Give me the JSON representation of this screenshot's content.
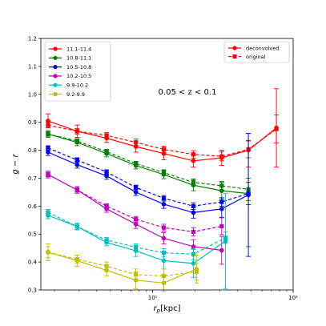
{
  "chart_data": {
    "type": "line",
    "xlabel": "r_p[kpc]",
    "ylabel": "g − r",
    "xscale": "log",
    "xlim": [
      1.6,
      100
    ],
    "ylim": [
      0.3,
      1.2
    ],
    "yticks": [
      0.3,
      0.4,
      0.5,
      0.6,
      0.7,
      0.8,
      0.9,
      1.0,
      1.1,
      1.2
    ],
    "ytick_labels": [
      "0.3",
      "0.4",
      "0.5",
      "0.6",
      "0.7",
      "0.8",
      "0.9",
      "1.0",
      "1.1",
      "1.2"
    ],
    "xticks": [
      10,
      100
    ],
    "xtick_labels": [
      "10¹",
      "10²"
    ],
    "annotation": "0.05 < z < 0.1",
    "legend_mass": {
      "placement": "top-left",
      "entries": [
        {
          "label": "11.1-11.4",
          "color": "#ff0000"
        },
        {
          "label": "10.8-11.1",
          "color": "#008000"
        },
        {
          "label": "10.5-10.8",
          "color": "#0000ff"
        },
        {
          "label": "10.2-10.5",
          "color": "#bf00bf"
        },
        {
          "label": "9.9-10.2",
          "color": "#00bfbf"
        },
        {
          "label": "9.2-9.9",
          "color": "#bfbf00"
        }
      ]
    },
    "legend_style": {
      "placement": "top-right",
      "entries": [
        {
          "label": "deconvolved",
          "style": "solid",
          "marker": "circle"
        },
        {
          "label": "original",
          "style": "dashed",
          "marker": "square"
        }
      ]
    },
    "series": [
      {
        "name": "11.1-11.4",
        "color": "#ff0000",
        "deconvolved": {
          "x": [
            1.8,
            2.9,
            4.7,
            7.6,
            12.0,
            19.5,
            31,
            48,
            76
          ],
          "y": [
            0.905,
            0.868,
            0.843,
            0.813,
            0.788,
            0.762,
            0.773,
            0.8,
            0.88
          ],
          "err": [
            0.025,
            0.022,
            0.015,
            0.02,
            0.022,
            0.022,
            0.027,
            0.06,
            0.14
          ]
        },
        "original": {
          "x": [
            1.8,
            2.9,
            4.7,
            7.6,
            12.0,
            19.5,
            31,
            48,
            76
          ],
          "y": [
            0.89,
            0.868,
            0.853,
            0.828,
            0.803,
            0.785,
            0.778,
            0.803,
            0.876
          ],
          "err": [
            0.01,
            0.01,
            0.01,
            0.012,
            0.012,
            0.013,
            0.016,
            0.03,
            0.05
          ]
        }
      },
      {
        "name": "10.8-11.1",
        "color": "#008000",
        "deconvolved": {
          "x": [
            1.8,
            2.9,
            4.7,
            7.6,
            12.0,
            19.5,
            31,
            48
          ],
          "y": [
            0.858,
            0.828,
            0.788,
            0.745,
            0.713,
            0.675,
            0.655,
            0.645
          ],
          "err": [
            0.012,
            0.012,
            0.012,
            0.012,
            0.015,
            0.02,
            0.03,
            0.19
          ]
        },
        "original": {
          "x": [
            1.8,
            2.9,
            4.7,
            7.6,
            12.0,
            19.5,
            31,
            48
          ],
          "y": [
            0.858,
            0.833,
            0.795,
            0.752,
            0.72,
            0.685,
            0.673,
            0.66
          ],
          "err": [
            0.008,
            0.008,
            0.008,
            0.008,
            0.01,
            0.012,
            0.015,
            0.04
          ]
        }
      },
      {
        "name": "10.5-10.8",
        "color": "#0000ff",
        "deconvolved": {
          "x": [
            1.8,
            2.9,
            4.7,
            7.6,
            12.0,
            19.5,
            31,
            48
          ],
          "y": [
            0.793,
            0.748,
            0.708,
            0.65,
            0.607,
            0.577,
            0.59,
            0.64
          ],
          "err": [
            0.012,
            0.012,
            0.012,
            0.012,
            0.015,
            0.02,
            0.03,
            0.22
          ]
        },
        "original": {
          "x": [
            1.8,
            2.9,
            4.7,
            7.6,
            12.0,
            19.5,
            31,
            48
          ],
          "y": [
            0.808,
            0.765,
            0.722,
            0.667,
            0.628,
            0.6,
            0.615,
            0.645
          ],
          "err": [
            0.008,
            0.008,
            0.008,
            0.008,
            0.01,
            0.012,
            0.015,
            0.04
          ]
        }
      },
      {
        "name": "10.2-10.5",
        "color": "#bf00bf",
        "deconvolved": {
          "x": [
            1.8,
            2.9,
            4.7,
            7.6,
            12.0,
            19.5,
            31
          ],
          "y": [
            0.713,
            0.658,
            0.59,
            0.535,
            0.485,
            0.455,
            0.442
          ],
          "err": [
            0.012,
            0.012,
            0.012,
            0.015,
            0.02,
            0.025,
            0.05
          ]
        },
        "original": {
          "x": [
            1.8,
            2.9,
            4.7,
            7.6,
            12.0,
            19.5,
            31
          ],
          "y": [
            0.713,
            0.658,
            0.6,
            0.553,
            0.523,
            0.508,
            0.528
          ],
          "err": [
            0.008,
            0.008,
            0.008,
            0.01,
            0.012,
            0.015,
            0.03
          ]
        }
      },
      {
        "name": "9.9-10.2",
        "color": "#00bfbf",
        "deconvolved": {
          "x": [
            1.8,
            2.9,
            4.7,
            7.6,
            12.0,
            19.5,
            33
          ],
          "y": [
            0.567,
            0.527,
            0.47,
            0.44,
            0.405,
            0.395,
            0.475
          ],
          "err": [
            0.012,
            0.012,
            0.012,
            0.02,
            0.03,
            0.05,
            0.17
          ]
        },
        "original": {
          "x": [
            1.8,
            2.9,
            4.7,
            7.6,
            12.0,
            19.5,
            33
          ],
          "y": [
            0.578,
            0.527,
            0.478,
            0.453,
            0.433,
            0.428,
            0.487
          ],
          "err": [
            0.01,
            0.01,
            0.01,
            0.012,
            0.015,
            0.02,
            0.02
          ]
        }
      },
      {
        "name": "9.2-9.9",
        "color": "#bfbf00",
        "deconvolved": {
          "x": [
            1.8,
            2.9,
            4.7,
            7.6,
            12.0,
            20.5
          ],
          "y": [
            0.435,
            0.405,
            0.37,
            0.335,
            0.325,
            0.375
          ],
          "err": [
            0.03,
            0.02,
            0.02,
            0.03,
            0.03,
            0.05
          ]
        },
        "original": {
          "x": [
            1.8,
            2.9,
            4.7,
            7.6,
            12.0,
            20.5
          ],
          "y": [
            0.435,
            0.41,
            0.385,
            0.355,
            0.35,
            0.365
          ],
          "err": [
            0.02,
            0.015,
            0.015,
            0.02,
            0.025,
            0.03
          ]
        }
      }
    ]
  }
}
